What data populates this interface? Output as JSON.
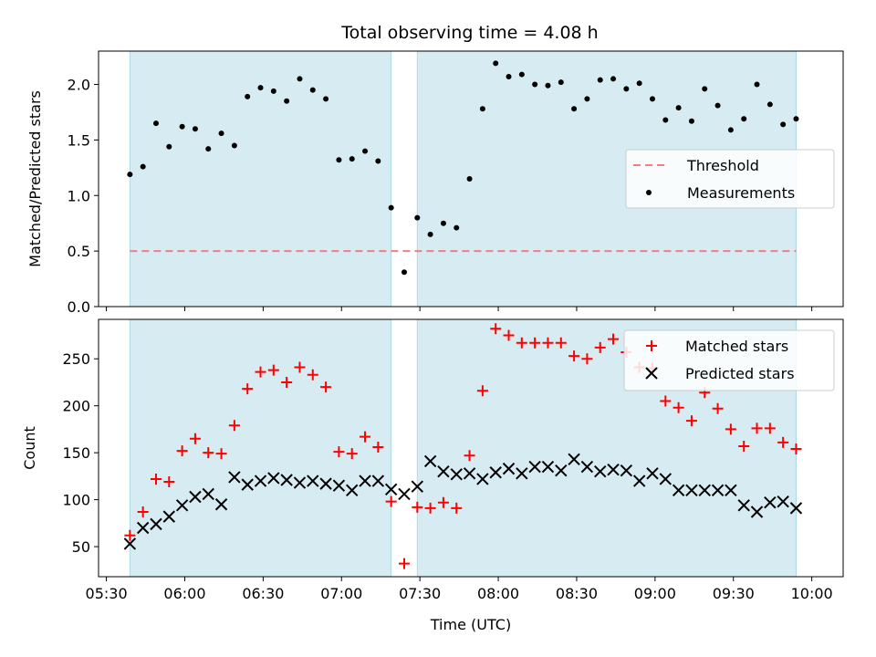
{
  "title": "Total observing time = 4.08 h",
  "colors": {
    "shade": "#add8e6",
    "threshold": "#f08080",
    "measurement": "#000000",
    "matched": "#ff0000",
    "predicted": "#000000"
  },
  "chart_data": [
    {
      "type": "scatter",
      "ylabel": "Matched/Predicted stars",
      "xlim": [
        "05:27",
        "10:12"
      ],
      "ylim": [
        0,
        2.3
      ],
      "yticks": [
        "0.0",
        "0.5",
        "1.0",
        "1.5",
        "2.0"
      ],
      "ytick_values": [
        0,
        0.5,
        1.0,
        1.5,
        2.0
      ],
      "shaded_intervals": [
        [
          "05:39",
          "07:19"
        ],
        [
          "07:29",
          "09:54"
        ]
      ],
      "threshold": {
        "name": "Threshold",
        "value": 0.5,
        "x_range": [
          "05:39",
          "09:54"
        ],
        "style": "dashed"
      },
      "legend_position": "center-right",
      "series": [
        {
          "name": "Measurements",
          "marker": "dot",
          "x": [
            "05:39",
            "05:44",
            "05:49",
            "05:54",
            "05:59",
            "06:04",
            "06:09",
            "06:14",
            "06:19",
            "06:24",
            "06:29",
            "06:34",
            "06:39",
            "06:44",
            "06:49",
            "06:54",
            "06:59",
            "07:04",
            "07:09",
            "07:14",
            "07:19",
            "07:24",
            "07:29",
            "07:34",
            "07:39",
            "07:44",
            "07:49",
            "07:54",
            "07:59",
            "08:04",
            "08:09",
            "08:14",
            "08:19",
            "08:24",
            "08:29",
            "08:34",
            "08:39",
            "08:44",
            "08:49",
            "08:54",
            "08:59",
            "09:04",
            "09:09",
            "09:14",
            "09:19",
            "09:24",
            "09:29",
            "09:34",
            "09:39",
            "09:44",
            "09:49",
            "09:54"
          ],
          "y": [
            1.19,
            1.26,
            1.65,
            1.44,
            1.62,
            1.6,
            1.42,
            1.56,
            1.45,
            1.89,
            1.97,
            1.94,
            1.85,
            2.05,
            1.95,
            1.87,
            1.32,
            1.33,
            1.4,
            1.31,
            0.89,
            0.31,
            0.8,
            0.65,
            0.75,
            0.71,
            1.15,
            1.78,
            2.19,
            2.07,
            2.09,
            2.0,
            1.99,
            2.02,
            1.78,
            1.87,
            2.04,
            2.05,
            1.96,
            2.01,
            1.87,
            1.68,
            1.79,
            1.67,
            1.96,
            1.81,
            1.59,
            1.69,
            2.0,
            1.82,
            1.64,
            1.69
          ]
        }
      ]
    },
    {
      "type": "scatter",
      "xlabel": "Time (UTC)",
      "ylabel": "Count",
      "xlim": [
        "05:27",
        "10:12"
      ],
      "ylim": [
        18,
        292
      ],
      "yticks": [
        "50",
        "100",
        "150",
        "200",
        "250"
      ],
      "ytick_values": [
        50,
        100,
        150,
        200,
        250
      ],
      "xticks": [
        "05:30",
        "06:00",
        "06:30",
        "07:00",
        "07:30",
        "08:00",
        "08:30",
        "09:00",
        "09:30",
        "10:00"
      ],
      "shaded_intervals": [
        [
          "05:39",
          "07:19"
        ],
        [
          "07:29",
          "09:54"
        ]
      ],
      "legend_position": "top-right",
      "series": [
        {
          "name": "Matched stars",
          "marker": "plus",
          "x": [
            "05:39",
            "05:44",
            "05:49",
            "05:54",
            "05:59",
            "06:04",
            "06:09",
            "06:14",
            "06:19",
            "06:24",
            "06:29",
            "06:34",
            "06:39",
            "06:44",
            "06:49",
            "06:54",
            "06:59",
            "07:04",
            "07:09",
            "07:14",
            "07:19",
            "07:24",
            "07:29",
            "07:34",
            "07:39",
            "07:44",
            "07:49",
            "07:54",
            "07:59",
            "08:04",
            "08:09",
            "08:14",
            "08:19",
            "08:24",
            "08:29",
            "08:34",
            "08:39",
            "08:44",
            "08:49",
            "08:54",
            "08:59",
            "09:04",
            "09:09",
            "09:14",
            "09:19",
            "09:24",
            "09:29",
            "09:34",
            "09:39",
            "09:44",
            "09:49",
            "09:54"
          ],
          "y": [
            62,
            87,
            122,
            119,
            152,
            165,
            150,
            149,
            179,
            218,
            236,
            238,
            225,
            241,
            233,
            220,
            151,
            149,
            167,
            156,
            98,
            32,
            92,
            91,
            97,
            91,
            147,
            216,
            282,
            275,
            267,
            267,
            267,
            267,
            253,
            250,
            262,
            271,
            257,
            241,
            240,
            205,
            198,
            184,
            214,
            197,
            175,
            157,
            176,
            176,
            161,
            154
          ]
        },
        {
          "name": "Predicted stars",
          "marker": "x",
          "x": [
            "05:39",
            "05:44",
            "05:49",
            "05:54",
            "05:59",
            "06:04",
            "06:09",
            "06:14",
            "06:19",
            "06:24",
            "06:29",
            "06:34",
            "06:39",
            "06:44",
            "06:49",
            "06:54",
            "06:59",
            "07:04",
            "07:09",
            "07:14",
            "07:19",
            "07:24",
            "07:29",
            "07:34",
            "07:39",
            "07:44",
            "07:49",
            "07:54",
            "07:59",
            "08:04",
            "08:09",
            "08:14",
            "08:19",
            "08:24",
            "08:29",
            "08:34",
            "08:39",
            "08:44",
            "08:49",
            "08:54",
            "08:59",
            "09:04",
            "09:09",
            "09:14",
            "09:19",
            "09:24",
            "09:29",
            "09:34",
            "09:39",
            "09:44",
            "09:49",
            "09:54"
          ],
          "y": [
            53,
            70,
            74,
            82,
            94,
            103,
            106,
            95,
            124,
            116,
            120,
            123,
            121,
            118,
            120,
            117,
            115,
            110,
            120,
            120,
            111,
            106,
            114,
            141,
            130,
            127,
            128,
            122,
            129,
            133,
            128,
            135,
            135,
            131,
            143,
            135,
            130,
            132,
            131,
            120,
            128,
            122,
            110,
            110,
            110,
            110,
            110,
            94,
            87,
            97,
            98,
            91
          ]
        }
      ]
    }
  ]
}
